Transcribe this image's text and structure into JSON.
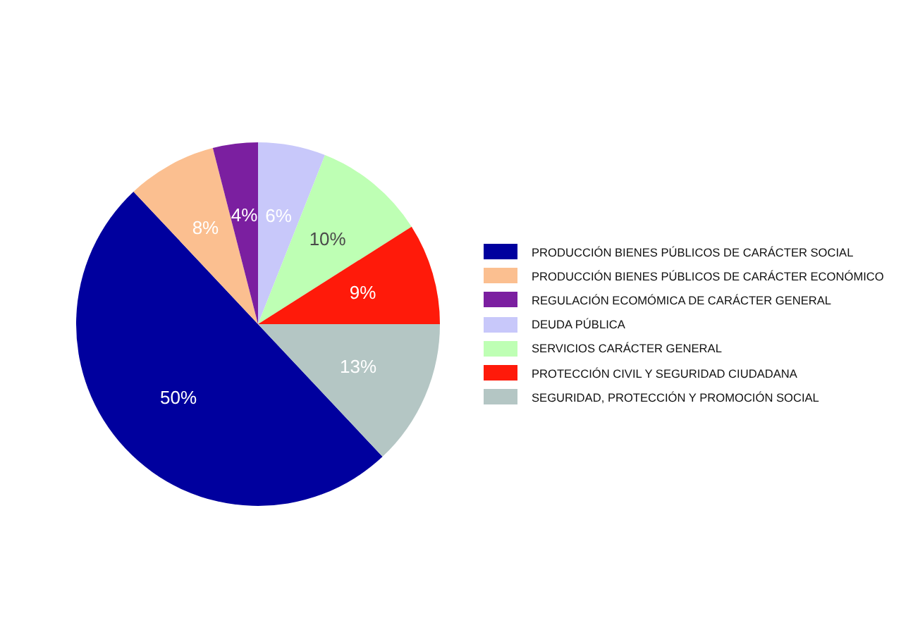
{
  "chart_data": {
    "type": "pie",
    "categories": [
      "PRODUCCIÓN BIENES PÚBLICOS DE CARÁCTER SOCIAL",
      "PRODUCCIÓN BIENES PÚBLICOS DE CARÁCTER ECONÓMICO",
      "REGULACIÓN ECOMÓMICA DE CARÁCTER GENERAL",
      "DEUDA PÚBLICA",
      "SERVICIOS CARÁCTER GENERAL",
      "PROTECCIÓN CIVIL Y SEGURIDAD CIUDADANA",
      "SEGURIDAD, PROTECCIÓN Y PROMOCIÓN SOCIAL"
    ],
    "values": [
      50,
      8,
      4,
      6,
      10,
      9,
      13
    ],
    "value_labels": [
      "50%",
      "8%",
      "4%",
      "6%",
      "10%",
      "9%",
      "13%"
    ],
    "colors": [
      "#00009e",
      "#fbbf90",
      "#7b1fa0",
      "#c8c8fa",
      "#beffb4",
      "#ff1a0a",
      "#b4c6c4"
    ],
    "legend": "right"
  }
}
